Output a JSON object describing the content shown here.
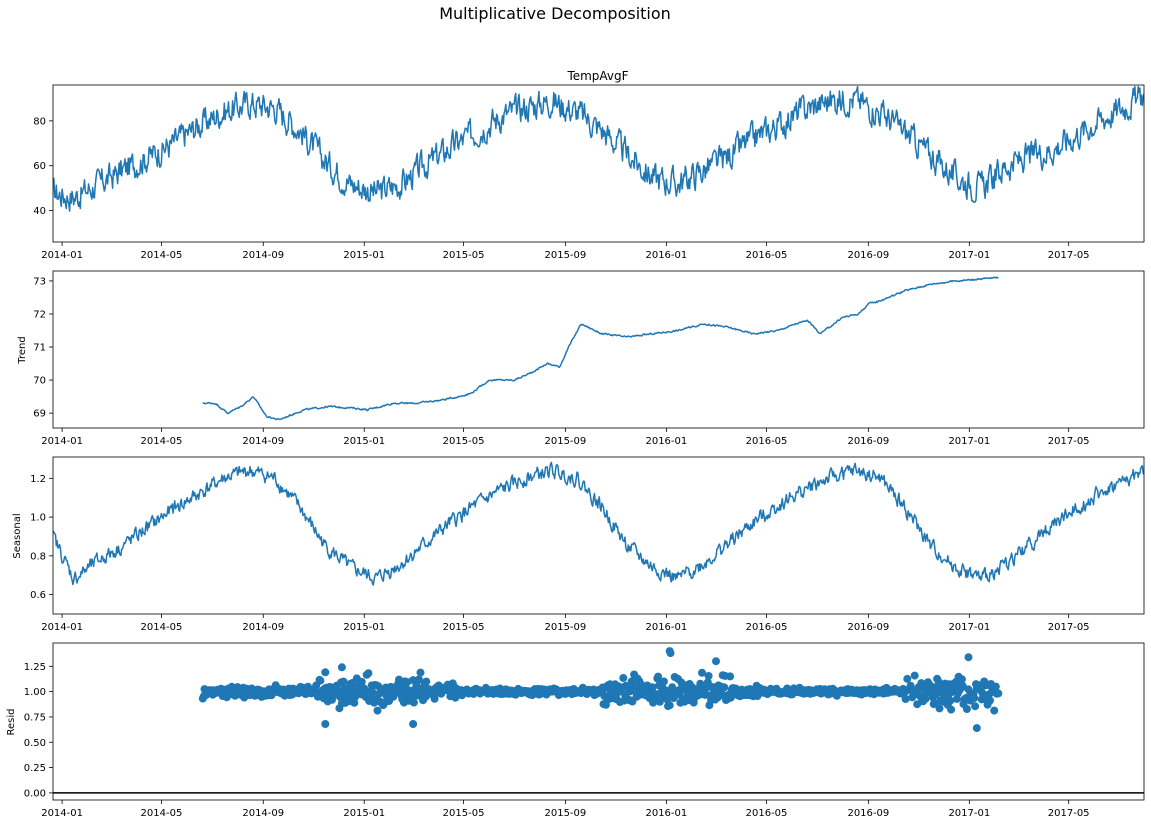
{
  "suptitle": "Multiplicative Decomposition",
  "colors": {
    "series": "#1f77b4",
    "axis": "#000000",
    "background": "#ffffff"
  },
  "x_ticks": [
    "2014-01",
    "2014-05",
    "2014-09",
    "2015-01",
    "2015-05",
    "2015-09",
    "2016-01",
    "2016-05",
    "2016-09",
    "2017-01",
    "2017-05"
  ],
  "chart_data": [
    {
      "type": "line",
      "title": "TempAvgF",
      "ylabel": "",
      "x_range": [
        "2013-12-21",
        "2017-07-31"
      ],
      "ylim": [
        26,
        96
      ],
      "yticks": [
        "40",
        "60",
        "80"
      ],
      "x": [
        "2013-12-21",
        "2014-01-15",
        "2014-02-15",
        "2014-03-15",
        "2014-04-15",
        "2014-05-15",
        "2014-06-15",
        "2014-07-15",
        "2014-08-15",
        "2014-09-15",
        "2014-10-15",
        "2014-11-15",
        "2014-12-15",
        "2015-01-15",
        "2015-02-15",
        "2015-03-15",
        "2015-04-15",
        "2015-05-15",
        "2015-06-15",
        "2015-07-15",
        "2015-08-15",
        "2015-09-15",
        "2015-10-15",
        "2015-11-15",
        "2015-12-15",
        "2016-01-15",
        "2016-02-15",
        "2016-03-15",
        "2016-04-15",
        "2016-05-15",
        "2016-06-15",
        "2016-07-15",
        "2016-08-15",
        "2016-09-15",
        "2016-10-15",
        "2016-11-15",
        "2016-12-15",
        "2017-01-15",
        "2017-02-15",
        "2017-03-15",
        "2017-04-15",
        "2017-05-15",
        "2017-06-15",
        "2017-07-15",
        "2017-07-31"
      ],
      "y": [
        48,
        46,
        52,
        58,
        64,
        70,
        78,
        84,
        88,
        86,
        76,
        62,
        52,
        48,
        52,
        60,
        68,
        75,
        82,
        86,
        89,
        84,
        76,
        65,
        55,
        52,
        58,
        64,
        72,
        78,
        85,
        89,
        90,
        84,
        75,
        65,
        55,
        50,
        60,
        64,
        68,
        75,
        82,
        88,
        92
      ],
      "noise_amplitude": 10
    },
    {
      "type": "line",
      "title": "",
      "ylabel": "Trend",
      "x_range": [
        "2013-12-21",
        "2017-07-31"
      ],
      "ylim": [
        68.55,
        73.3
      ],
      "yticks": [
        "69",
        "70",
        "71",
        "72",
        "73"
      ],
      "x": [
        "2014-06-20",
        "2014-07-05",
        "2014-07-20",
        "2014-08-05",
        "2014-08-20",
        "2014-09-05",
        "2014-09-20",
        "2014-10-20",
        "2014-11-20",
        "2014-12-20",
        "2015-01-05",
        "2015-02-05",
        "2015-03-05",
        "2015-04-05",
        "2015-04-25",
        "2015-05-10",
        "2015-06-01",
        "2015-07-01",
        "2015-07-20",
        "2015-08-10",
        "2015-08-25",
        "2015-09-05",
        "2015-09-20",
        "2015-10-15",
        "2015-11-15",
        "2015-12-15",
        "2016-01-15",
        "2016-02-15",
        "2016-03-15",
        "2016-04-15",
        "2016-05-15",
        "2016-06-05",
        "2016-06-20",
        "2016-07-05",
        "2016-08-01",
        "2016-08-20",
        "2016-09-01",
        "2016-09-15",
        "2016-10-15",
        "2016-11-15",
        "2016-12-15",
        "2017-01-10",
        "2017-02-05"
      ],
      "y": [
        69.3,
        69.3,
        69.0,
        69.2,
        69.5,
        68.9,
        68.8,
        69.1,
        69.2,
        69.15,
        69.1,
        69.3,
        69.3,
        69.4,
        69.5,
        69.6,
        70.0,
        70.0,
        70.2,
        70.5,
        70.4,
        71.0,
        71.7,
        71.4,
        71.3,
        71.4,
        71.5,
        71.7,
        71.6,
        71.4,
        71.5,
        71.7,
        71.8,
        71.4,
        71.9,
        72.0,
        72.3,
        72.4,
        72.7,
        72.9,
        73.0,
        73.05,
        73.1
      ],
      "noise_amplitude": 0.04
    },
    {
      "type": "line",
      "title": "",
      "ylabel": "Seasonal",
      "x_range": [
        "2013-12-21",
        "2017-07-31"
      ],
      "ylim": [
        0.5,
        1.31
      ],
      "yticks": [
        "0.6",
        "0.8",
        "1.0",
        "1.2"
      ],
      "x": [
        "2013-12-21",
        "2014-01-15",
        "2014-02-15",
        "2014-03-15",
        "2014-04-15",
        "2014-05-15",
        "2014-06-15",
        "2014-07-15",
        "2014-08-15",
        "2014-09-15",
        "2014-10-15",
        "2014-11-15",
        "2014-12-15",
        "2015-01-15",
        "2015-02-15",
        "2015-03-15",
        "2015-04-15",
        "2015-05-15",
        "2015-06-15",
        "2015-07-15",
        "2015-08-15",
        "2015-09-15",
        "2015-10-15",
        "2015-11-15",
        "2015-12-15",
        "2016-01-15",
        "2016-02-15",
        "2016-03-15",
        "2016-04-15",
        "2016-05-15",
        "2016-06-15",
        "2016-07-15",
        "2016-08-15",
        "2016-09-15",
        "2016-10-15",
        "2016-11-15",
        "2016-12-15",
        "2017-01-15",
        "2017-02-15",
        "2017-03-15",
        "2017-04-15",
        "2017-05-15",
        "2017-06-15",
        "2017-07-15",
        "2017-07-31"
      ],
      "y": [
        0.9,
        0.68,
        0.78,
        0.85,
        0.95,
        1.04,
        1.12,
        1.2,
        1.24,
        1.2,
        1.05,
        0.85,
        0.74,
        0.68,
        0.76,
        0.86,
        0.97,
        1.06,
        1.14,
        1.2,
        1.24,
        1.2,
        1.05,
        0.85,
        0.74,
        0.68,
        0.76,
        0.86,
        0.97,
        1.06,
        1.14,
        1.2,
        1.24,
        1.2,
        1.05,
        0.85,
        0.74,
        0.68,
        0.76,
        0.86,
        0.97,
        1.06,
        1.14,
        1.2,
        1.24
      ],
      "noise_amplitude": 0.06
    },
    {
      "type": "scatter",
      "title": "",
      "ylabel": "Resid",
      "x_range": [
        "2013-12-21",
        "2017-07-31"
      ],
      "ylim": [
        -0.07,
        1.48
      ],
      "yticks": [
        "0.00",
        "0.25",
        "0.50",
        "0.75",
        "1.00",
        "1.25"
      ],
      "x_span": [
        "2014-06-20",
        "2017-02-05"
      ],
      "center": 1.0,
      "spread": [
        {
          "from": "2014-06-20",
          "to": "2014-11-01",
          "amp": 0.05
        },
        {
          "from": "2014-11-01",
          "to": "2015-03-20",
          "amp": 0.14
        },
        {
          "from": "2015-03-20",
          "to": "2015-05-01",
          "amp": 0.07
        },
        {
          "from": "2015-05-01",
          "to": "2015-10-15",
          "amp": 0.03
        },
        {
          "from": "2015-10-15",
          "to": "2016-03-20",
          "amp": 0.14
        },
        {
          "from": "2016-03-20",
          "to": "2016-05-01",
          "amp": 0.06
        },
        {
          "from": "2016-05-01",
          "to": "2016-10-15",
          "amp": 0.03
        },
        {
          "from": "2016-10-15",
          "to": "2017-02-05",
          "amp": 0.15
        }
      ],
      "extremes": [
        {
          "x": "2014-11-15",
          "y": 0.68
        },
        {
          "x": "2014-12-05",
          "y": 1.24
        },
        {
          "x": "2015-03-01",
          "y": 0.68
        },
        {
          "x": "2016-01-05",
          "y": 1.4
        },
        {
          "x": "2016-01-06",
          "y": 1.38
        },
        {
          "x": "2016-03-01",
          "y": 1.3
        },
        {
          "x": "2016-12-31",
          "y": 1.34
        },
        {
          "x": "2017-01-10",
          "y": 0.64
        }
      ],
      "zero_line": 0
    }
  ]
}
